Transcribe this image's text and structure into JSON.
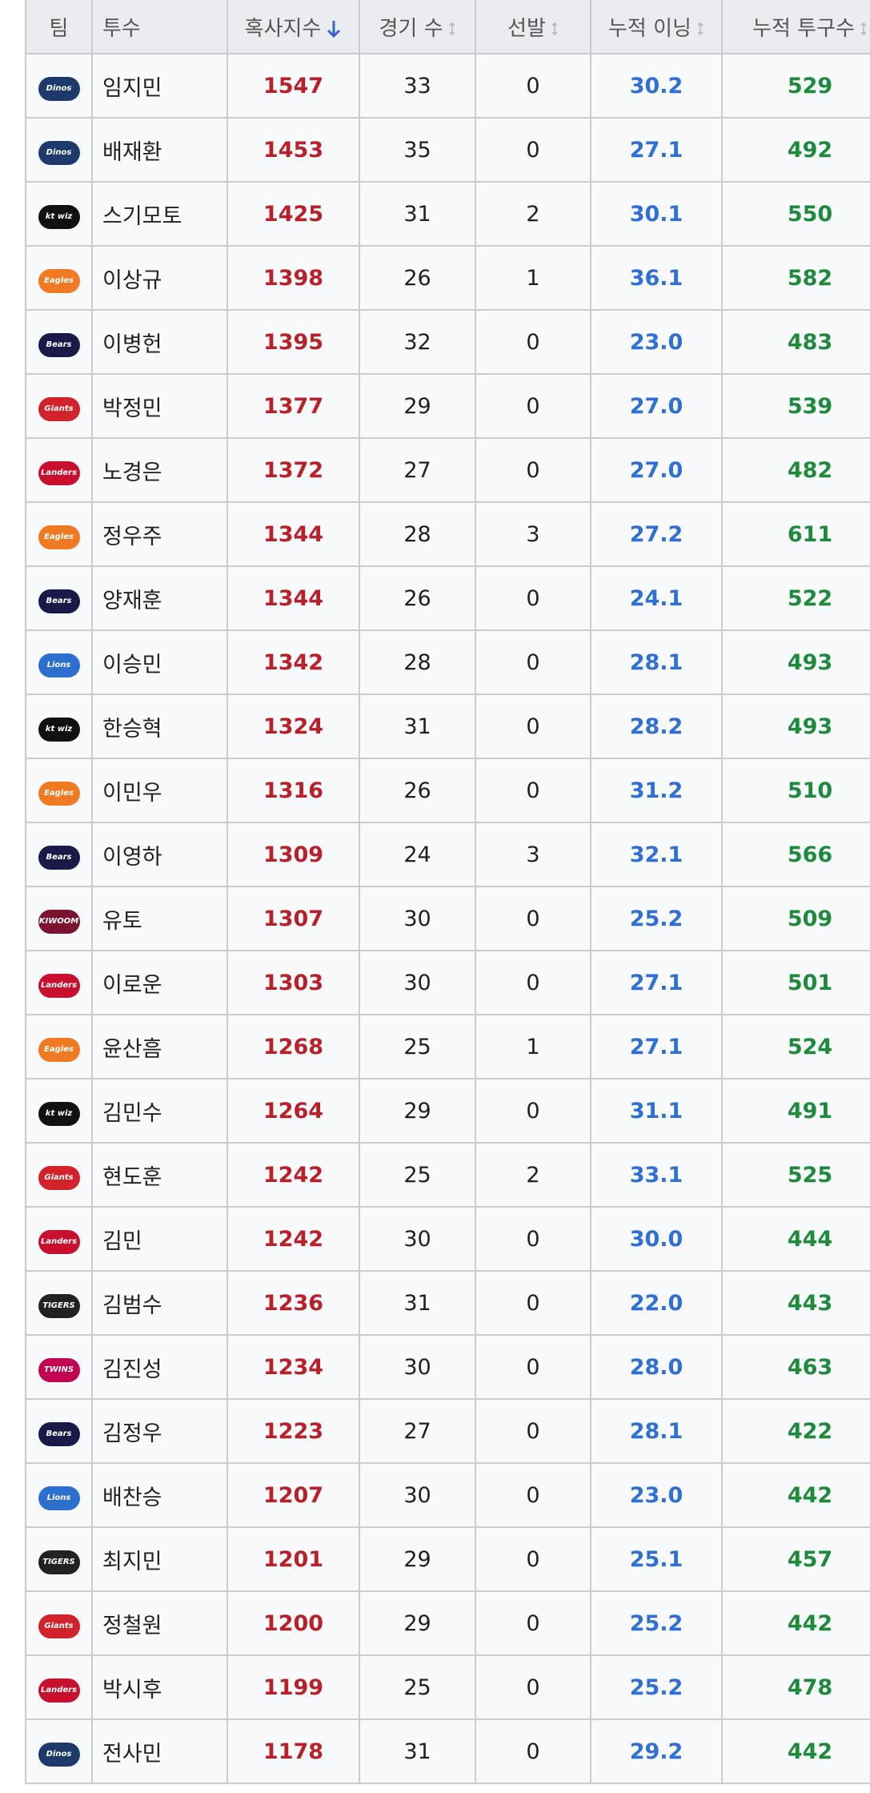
{
  "table": {
    "headers": [
      "팀",
      "투수",
      "혹사지수",
      "경기 수",
      "선발",
      "누적 이닝",
      "누적 투구수"
    ],
    "rows": [
      [
        "Dinos",
        "임지민",
        "1547",
        "33",
        "0",
        "30.2",
        "529"
      ],
      [
        "Dinos",
        "배재환",
        "1453",
        "35",
        "0",
        "27.1",
        "492"
      ],
      [
        "kt wiz",
        "스기모토",
        "1425",
        "31",
        "2",
        "30.1",
        "550"
      ],
      [
        "Eagles",
        "이상규",
        "1398",
        "26",
        "1",
        "36.1",
        "582"
      ],
      [
        "Bears",
        "이병헌",
        "1395",
        "32",
        "0",
        "23.0",
        "483"
      ],
      [
        "Giants",
        "박정민",
        "1377",
        "29",
        "0",
        "27.0",
        "539"
      ],
      [
        "Landers",
        "노경은",
        "1372",
        "27",
        "0",
        "27.0",
        "482"
      ],
      [
        "Eagles",
        "정우주",
        "1344",
        "28",
        "3",
        "27.2",
        "611"
      ],
      [
        "Bears",
        "양재훈",
        "1344",
        "26",
        "0",
        "24.1",
        "522"
      ],
      [
        "Lions",
        "이승민",
        "1342",
        "28",
        "0",
        "28.1",
        "493"
      ],
      [
        "kt wiz",
        "한승혁",
        "1324",
        "31",
        "0",
        "28.2",
        "493"
      ],
      [
        "Eagles",
        "이민우",
        "1316",
        "26",
        "0",
        "31.2",
        "510"
      ],
      [
        "Bears",
        "이영하",
        "1309",
        "24",
        "3",
        "32.1",
        "566"
      ],
      [
        "KIWOOM",
        "유토",
        "1307",
        "30",
        "0",
        "25.2",
        "509"
      ],
      [
        "Landers",
        "이로운",
        "1303",
        "30",
        "0",
        "27.1",
        "501"
      ],
      [
        "Eagles",
        "윤산흠",
        "1268",
        "25",
        "1",
        "27.1",
        "524"
      ],
      [
        "kt wiz",
        "김민수",
        "1264",
        "29",
        "0",
        "31.1",
        "491"
      ],
      [
        "Giants",
        "현도훈",
        "1242",
        "25",
        "2",
        "33.1",
        "525"
      ],
      [
        "Landers",
        "김민",
        "1242",
        "30",
        "0",
        "30.0",
        "444"
      ],
      [
        "TIGERS",
        "김범수",
        "1236",
        "31",
        "0",
        "22.0",
        "443"
      ],
      [
        "TWINS",
        "김진성",
        "1234",
        "30",
        "0",
        "28.0",
        "463"
      ],
      [
        "Bears",
        "김정우",
        "1223",
        "27",
        "0",
        "28.1",
        "422"
      ],
      [
        "Lions",
        "배찬승",
        "1207",
        "30",
        "0",
        "23.0",
        "442"
      ],
      [
        "TIGERS",
        "최지민",
        "1201",
        "29",
        "0",
        "25.1",
        "457"
      ],
      [
        "Giants",
        "정철원",
        "1200",
        "29",
        "0",
        "25.2",
        "442"
      ],
      [
        "Landers",
        "박시후",
        "1199",
        "25",
        "0",
        "25.2",
        "478"
      ],
      [
        "Dinos",
        "전사민",
        "1178",
        "31",
        "0",
        "29.2",
        "442"
      ]
    ]
  }
}
